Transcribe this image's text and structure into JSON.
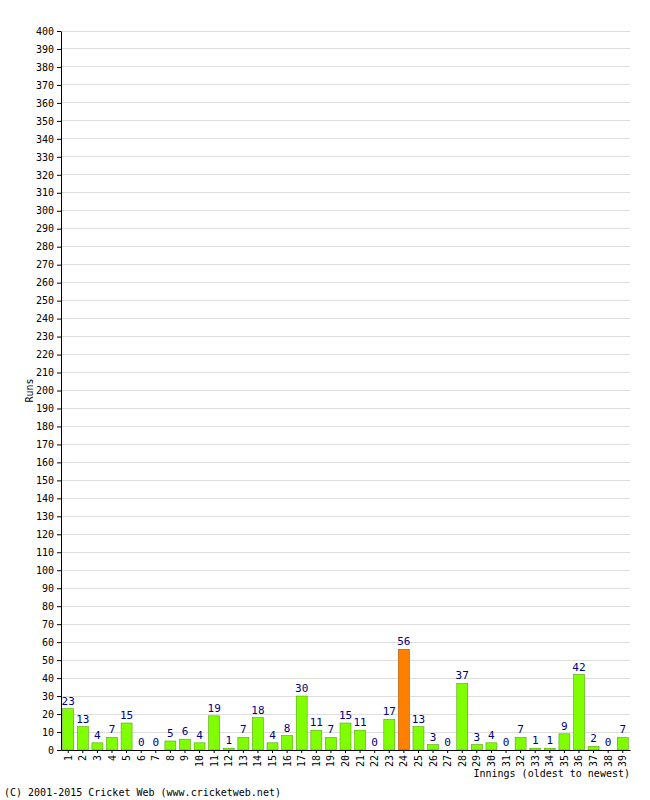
{
  "chart_data": {
    "type": "bar",
    "x_label": "Innings (oldest to newest)",
    "y_label": "Runs",
    "annotations": [
      "(C) 2001-2015 Cricket Web (www.cricketweb.net)"
    ],
    "categories": [
      "1",
      "2",
      "3",
      "4",
      "5",
      "6",
      "7",
      "8",
      "9",
      "10",
      "11",
      "12",
      "13",
      "14",
      "15",
      "16",
      "17",
      "18",
      "19",
      "20",
      "21",
      "22",
      "23",
      "24",
      "25",
      "26",
      "27",
      "28",
      "29",
      "30",
      "31",
      "32",
      "33",
      "34",
      "35",
      "36",
      "37",
      "38",
      "39"
    ],
    "values": [
      23,
      13,
      4,
      7,
      15,
      0,
      0,
      5,
      6,
      4,
      19,
      1,
      7,
      18,
      4,
      8,
      30,
      11,
      7,
      15,
      11,
      0,
      17,
      56,
      13,
      3,
      0,
      37,
      3,
      4,
      0,
      7,
      1,
      1,
      9,
      42,
      2,
      0,
      7
    ],
    "colors": [
      "#80ff00",
      "#80ff00",
      "#80ff00",
      "#80ff00",
      "#80ff00",
      "#80ff00",
      "#80ff00",
      "#80ff00",
      "#80ff00",
      "#80ff00",
      "#80ff00",
      "#80ff00",
      "#80ff00",
      "#80ff00",
      "#80ff00",
      "#80ff00",
      "#80ff00",
      "#80ff00",
      "#80ff00",
      "#80ff00",
      "#80ff00",
      "#80ff00",
      "#80ff00",
      "#ff8000",
      "#80ff00",
      "#80ff00",
      "#80ff00",
      "#80ff00",
      "#80ff00",
      "#80ff00",
      "#80ff00",
      "#80ff00",
      "#80ff00",
      "#80ff00",
      "#80ff00",
      "#80ff00",
      "#80ff00",
      "#80ff00",
      "#80ff00"
    ],
    "ylim": [
      0,
      400
    ],
    "yticks": [
      0,
      10,
      20,
      30,
      40,
      50,
      60,
      70,
      80,
      90,
      100,
      110,
      120,
      130,
      140,
      150,
      160,
      170,
      180,
      190,
      200,
      210,
      220,
      230,
      240,
      250,
      260,
      270,
      280,
      290,
      300,
      310,
      320,
      330,
      340,
      350,
      360,
      370,
      380,
      390,
      400
    ],
    "grid": true,
    "data_labels": true
  }
}
